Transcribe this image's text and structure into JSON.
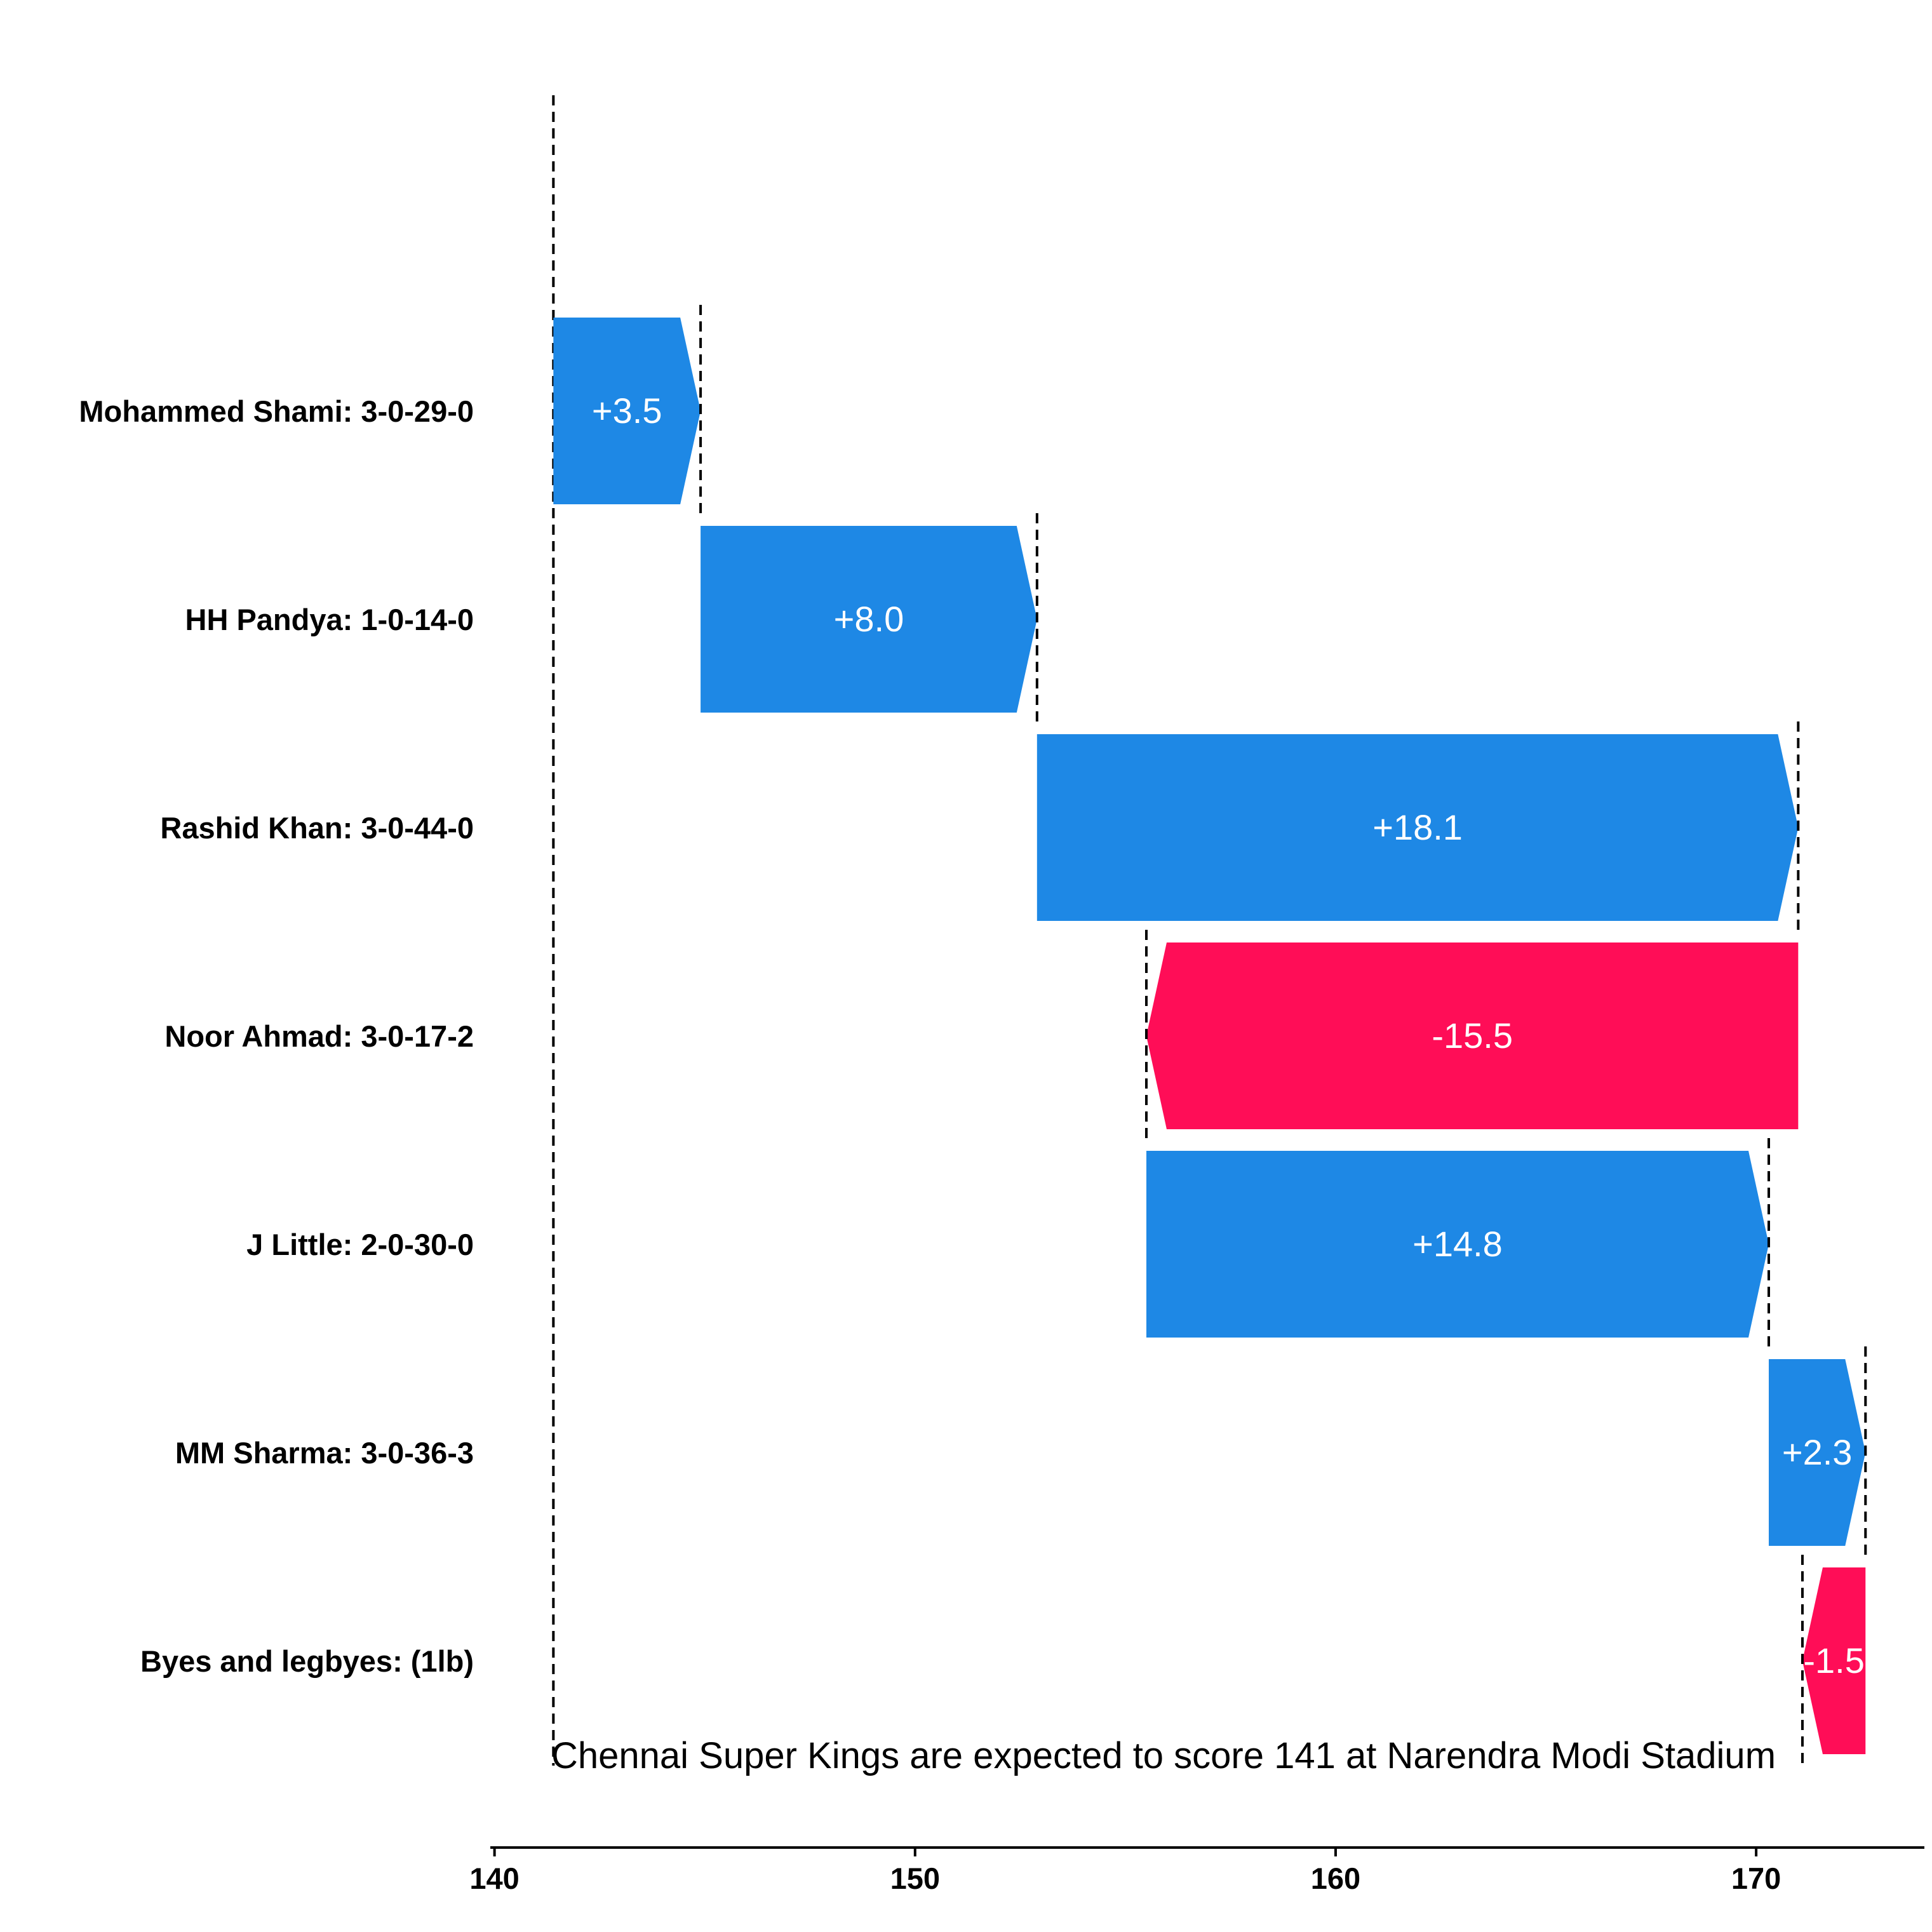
{
  "chart_data": {
    "type": "waterfall",
    "annotation": "Chennai Super Kings are expected to score 141 at Narendra Modi Stadium",
    "base_value": 141.4,
    "xlim": [
      139.9,
      174.0
    ],
    "xticks": [
      140,
      150,
      160,
      170
    ],
    "grid": false,
    "colors": {
      "positive": "#1e88e5",
      "negative": "#ff0d57",
      "text": "#000000",
      "bar_text": "#ffffff"
    },
    "rows": [
      {
        "label": "Mohammed Shami: 3-0-29-0",
        "value": 3.5,
        "display": "+3.5"
      },
      {
        "label": "HH Pandya: 1-0-14-0",
        "value": 8.0,
        "display": "+8.0"
      },
      {
        "label": "Rashid Khan: 3-0-44-0",
        "value": 18.1,
        "display": "+18.1"
      },
      {
        "label": "Noor Ahmad: 3-0-17-2",
        "value": -15.5,
        "display": "-15.5"
      },
      {
        "label": "J Little: 2-0-30-0",
        "value": 14.8,
        "display": "+14.8"
      },
      {
        "label": "MM Sharma: 3-0-36-3",
        "value": 2.3,
        "display": "+2.3"
      },
      {
        "label": "Byes and legbyes: (1lb)",
        "value": -1.5,
        "display": "-1.5"
      }
    ]
  }
}
